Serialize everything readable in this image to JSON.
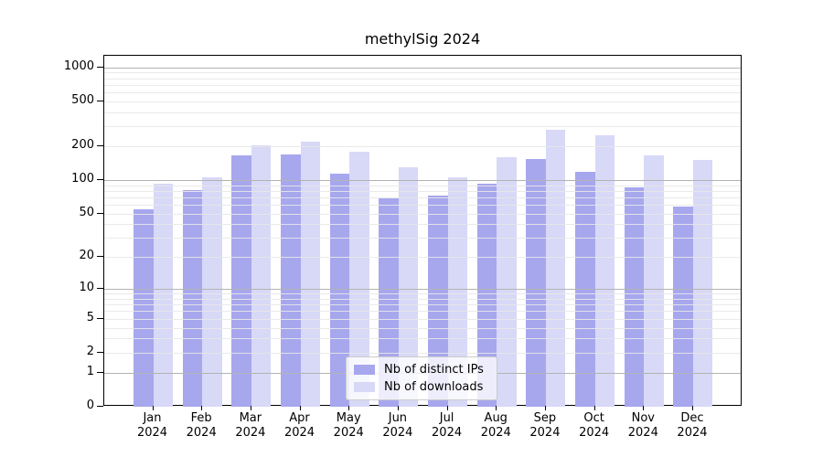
{
  "title": "methylSig 2024",
  "colors": {
    "distinct_ips": "#a7a7ee",
    "downloads": "#d8d8f7",
    "grid_major": "#b3b3b3",
    "grid_minor": "#e8e8e8",
    "axis": "#000000"
  },
  "legend": {
    "items": [
      {
        "label": "Nb of distinct IPs",
        "color_key": "distinct_ips"
      },
      {
        "label": "Nb of downloads",
        "color_key": "downloads"
      }
    ]
  },
  "y_axis": {
    "tick_labels": [
      "1000",
      "500",
      "200",
      "100",
      "50",
      "20",
      "10",
      "5",
      "2",
      "1",
      "0"
    ],
    "tick_values": [
      1000,
      500,
      200,
      100,
      50,
      20,
      10,
      5,
      2,
      1,
      0
    ],
    "major_gridlines": [
      1,
      10,
      100,
      1000
    ],
    "minor_gridlines": [
      2,
      3,
      4,
      5,
      6,
      7,
      8,
      9,
      20,
      30,
      40,
      50,
      60,
      70,
      80,
      90,
      200,
      300,
      400,
      500,
      600,
      700,
      800,
      900
    ]
  },
  "x_axis": {
    "year": "2024",
    "months": [
      "Jan",
      "Feb",
      "Mar",
      "Apr",
      "May",
      "Jun",
      "Jul",
      "Aug",
      "Sep",
      "Oct",
      "Nov",
      "Dec"
    ]
  },
  "chart_data": {
    "type": "bar",
    "title": "methylSig 2024",
    "categories": [
      "Jan 2024",
      "Feb 2024",
      "Mar 2024",
      "Apr 2024",
      "May 2024",
      "Jun 2024",
      "Jul 2024",
      "Aug 2024",
      "Sep 2024",
      "Oct 2024",
      "Nov 2024",
      "Dec 2024"
    ],
    "series": [
      {
        "name": "Nb of distinct IPs",
        "color_key": "distinct_ips",
        "values": [
          55,
          81,
          166,
          170,
          114,
          69,
          72,
          93,
          155,
          118,
          86,
          58
        ]
      },
      {
        "name": "Nb of downloads",
        "color_key": "downloads",
        "values": [
          92,
          105,
          203,
          218,
          178,
          129,
          106,
          160,
          280,
          249,
          166,
          150
        ]
      }
    ],
    "xlabel": "",
    "ylabel": "",
    "yscale": "log10(value+1)",
    "ylim": [
      0,
      1250
    ],
    "y_tick_labels": [
      "1000",
      "500",
      "200",
      "100",
      "50",
      "20",
      "10",
      "5",
      "2",
      "1",
      "0"
    ],
    "grid": "horizontal major+minor",
    "legend_position": "lower center"
  }
}
